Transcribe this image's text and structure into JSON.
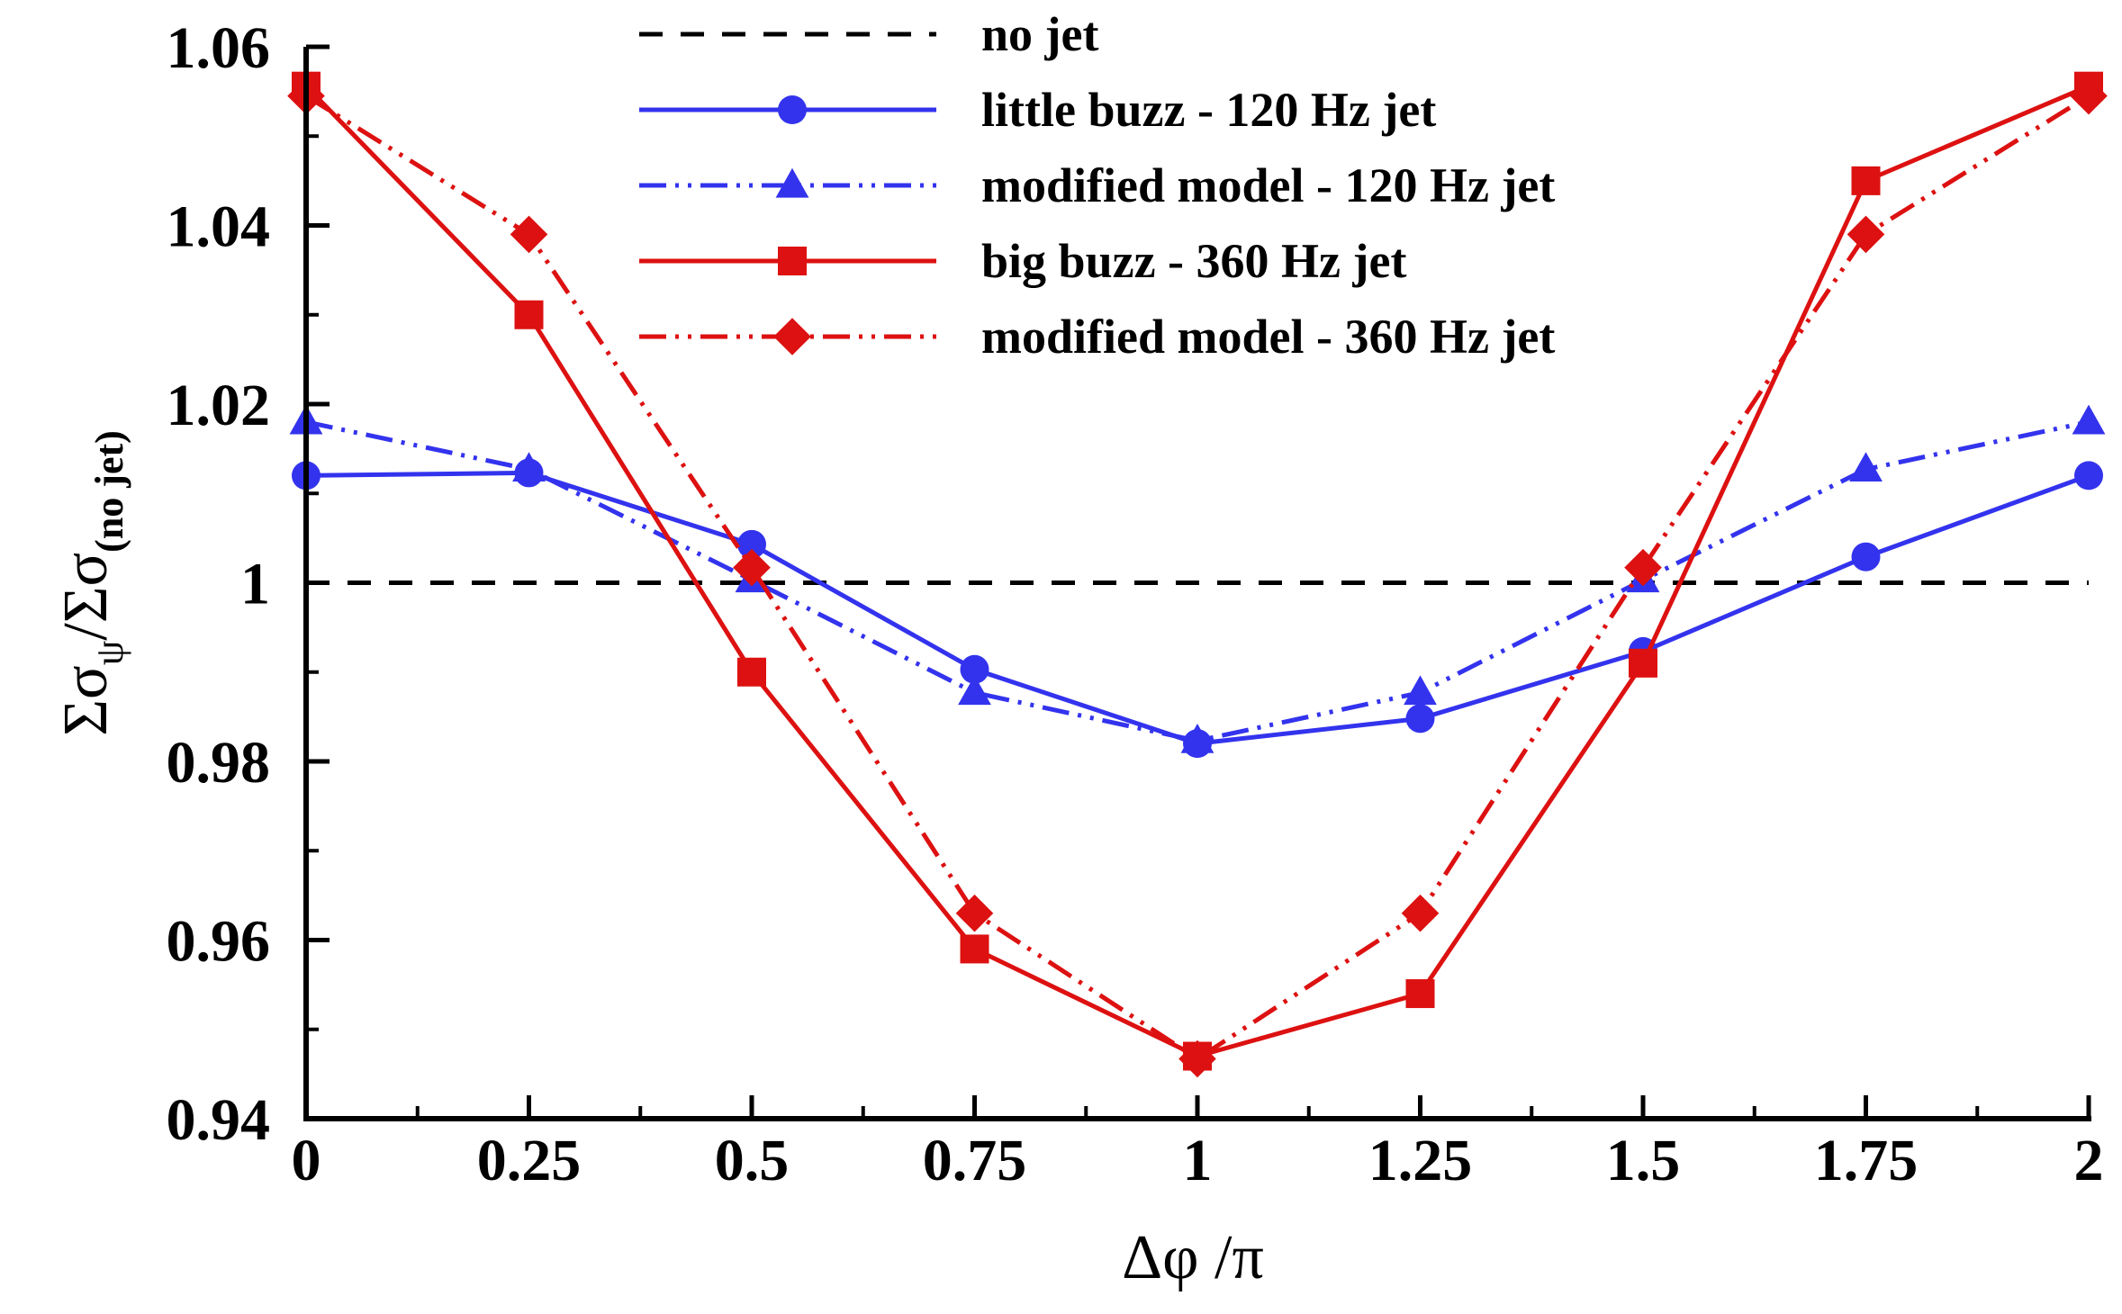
{
  "chart_data": {
    "type": "line",
    "xlabel": "Δφ /π",
    "ylabel": {
      "main": "Σσ",
      "sub1": "ψ",
      "mid": "/Σσ",
      "sub2": "(no jet)"
    },
    "xlim": [
      0,
      2
    ],
    "ylim": [
      0.94,
      1.06
    ],
    "xticks": [
      0,
      0.25,
      0.5,
      0.75,
      1,
      1.25,
      1.5,
      1.75,
      2
    ],
    "xtick_labels": [
      "0",
      "0.25",
      "0.5",
      "0.75",
      "1",
      "1.25",
      "1.5",
      "1.75",
      "2"
    ],
    "yticks": [
      0.94,
      0.96,
      0.98,
      1.0,
      1.02,
      1.04,
      1.06
    ],
    "ytick_labels": [
      "0.94",
      "0.96",
      "0.98",
      "1",
      "1.02",
      "1.04",
      "1.06"
    ],
    "grid": false,
    "legend_position": "top-center",
    "x": [
      0,
      0.25,
      0.5,
      0.75,
      1,
      1.25,
      1.5,
      1.75,
      2
    ],
    "series": [
      {
        "name": "no jet",
        "color": "#000000",
        "dash": "dashed",
        "marker": "none",
        "values": [
          1.0,
          1.0,
          1.0,
          1.0,
          1.0,
          1.0,
          1.0,
          1.0,
          1.0
        ]
      },
      {
        "name": "little buzz - 120 Hz jet",
        "color": "#3333ee",
        "dash": "solid",
        "marker": "circle",
        "values": [
          1.012,
          1.0123,
          1.0043,
          0.9903,
          0.982,
          0.9848,
          0.9923,
          1.0029,
          1.012
        ]
      },
      {
        "name": "modified model - 120 Hz jet",
        "color": "#3333ee",
        "dash": "dash-dot-dot",
        "marker": "triangle",
        "values": [
          1.018,
          1.0127,
          1.0003,
          0.9877,
          0.9823,
          0.9877,
          1.0003,
          1.0127,
          1.018
        ]
      },
      {
        "name": "big buzz - 360 Hz jet",
        "color": "#dd1111",
        "dash": "solid",
        "marker": "square",
        "values": [
          1.0556,
          1.03,
          0.99,
          0.959,
          0.947,
          0.954,
          0.991,
          1.045,
          1.0556
        ]
      },
      {
        "name": "modified model - 360 Hz jet",
        "color": "#dd1111",
        "dash": "dash-dot-dot",
        "marker": "diamond",
        "values": [
          1.0545,
          1.039,
          1.0017,
          0.963,
          0.9467,
          0.963,
          1.0017,
          1.039,
          1.0545
        ]
      }
    ]
  }
}
